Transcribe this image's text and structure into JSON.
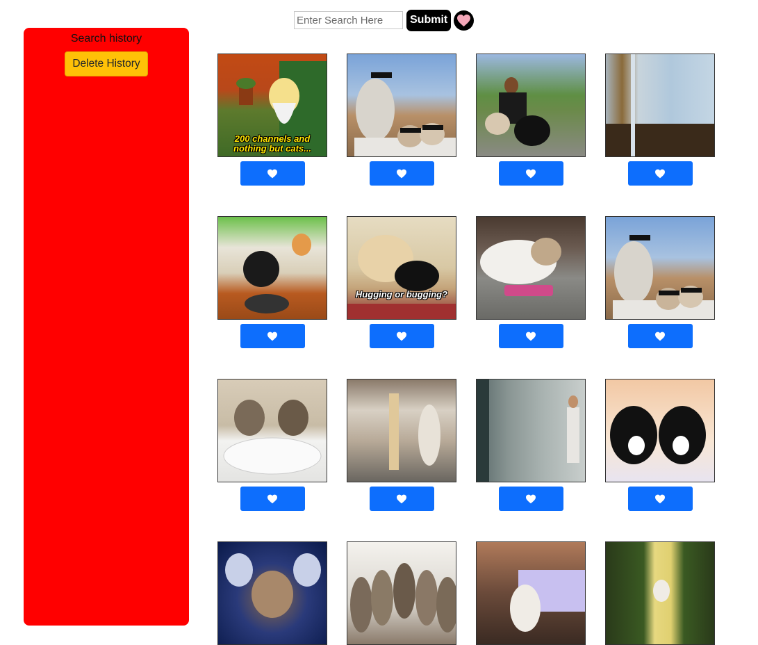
{
  "search": {
    "placeholder": "Enter Search Here",
    "value": "",
    "submit_label": "Submit",
    "favorites_icon": "heart-icon",
    "favorites_color": "#f4a7b9"
  },
  "sidebar": {
    "title": "Search history",
    "delete_label": "Delete History",
    "background": "#ff0000"
  },
  "like_button": {
    "icon": "heart-icon",
    "color": "#0d6efd"
  },
  "gifs": [
    {
      "name": "simpsons-old-man",
      "caption": "200 channels and nothing but cats..."
    },
    {
      "name": "cat-sunglasses",
      "caption": ""
    },
    {
      "name": "woman-with-cats",
      "caption": ""
    },
    {
      "name": "glass-door-room",
      "caption": ""
    },
    {
      "name": "cats-balance-board",
      "caption": ""
    },
    {
      "name": "dog-hugging-kitten",
      "caption": "Hugging or bugging?"
    },
    {
      "name": "cat-with-snack-bag",
      "caption": ""
    },
    {
      "name": "cat-sunglasses-2",
      "caption": ""
    },
    {
      "name": "kittens-toilet",
      "caption": ""
    },
    {
      "name": "cat-in-office",
      "caption": ""
    },
    {
      "name": "man-in-office",
      "caption": ""
    },
    {
      "name": "two-black-white-cats",
      "caption": ""
    },
    {
      "name": "cats-musical-face",
      "caption": ""
    },
    {
      "name": "kittens-looking-up",
      "caption": ""
    },
    {
      "name": "cat-at-aquarium",
      "caption": ""
    },
    {
      "name": "kitten-on-slide",
      "caption": ""
    }
  ]
}
